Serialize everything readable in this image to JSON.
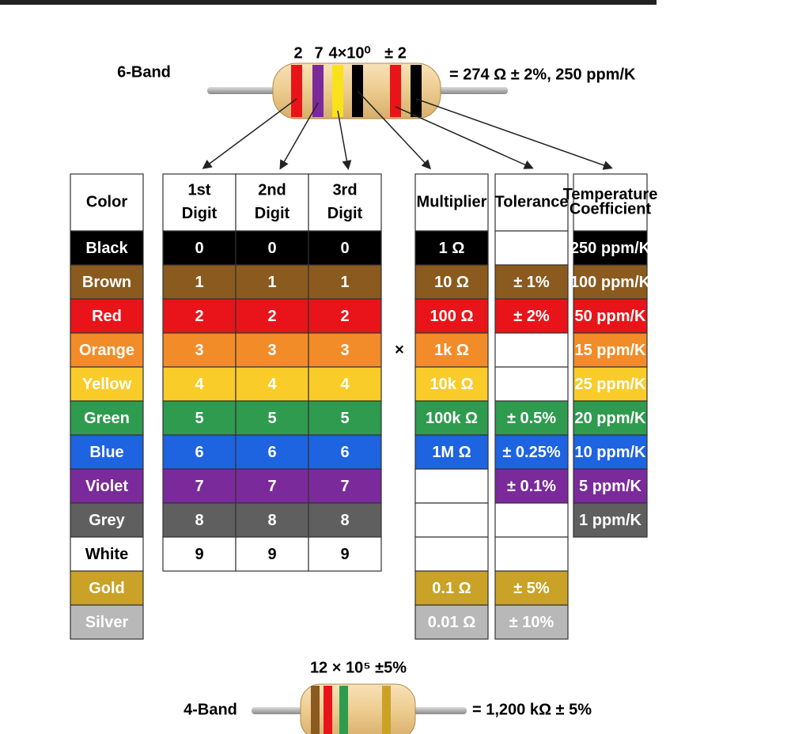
{
  "top_resistor": {
    "label": "6-Band",
    "codes": [
      "2",
      "7",
      "4×10⁰",
      "± 2"
    ],
    "result": "= 274 Ω ± 2%, 250 ppm/K"
  },
  "table": {
    "times": "×",
    "headers": {
      "color": [
        "Color"
      ],
      "digits": [
        [
          "1st",
          "Digit"
        ],
        [
          "2nd",
          "Digit"
        ],
        [
          "3rd",
          "Digit"
        ]
      ],
      "multiplier": [
        "Multiplier"
      ],
      "tolerance": [
        "Tolerance"
      ],
      "tempco": [
        "Temperature",
        "Coefficient"
      ]
    },
    "rows": [
      {
        "color": "Black",
        "bg": "#000000",
        "fg": "#ffffff",
        "digit": "0",
        "multiplier": "1 Ω",
        "tempco": "250 ppm/K"
      },
      {
        "color": "Brown",
        "bg": "#8b5a1e",
        "fg": "#ffffff",
        "digit": "1",
        "multiplier": "10 Ω",
        "tolerance": "± 1%",
        "tempco": "100 ppm/K"
      },
      {
        "color": "Red",
        "bg": "#e8141a",
        "fg": "#ffffff",
        "digit": "2",
        "multiplier": "100 Ω",
        "tolerance": "± 2%",
        "tempco": "50 ppm/K"
      },
      {
        "color": "Orange",
        "bg": "#f28c28",
        "fg": "#ffffff",
        "digit": "3",
        "multiplier": "1k Ω",
        "tempco": "15 ppm/K"
      },
      {
        "color": "Yellow",
        "bg": "#f9cc2a",
        "fg": "#ffffff",
        "digit": "4",
        "multiplier": "10k Ω",
        "tempco": "25 ppm/K"
      },
      {
        "color": "Green",
        "bg": "#2e9b4f",
        "fg": "#ffffff",
        "digit": "5",
        "multiplier": "100k Ω",
        "tolerance": "± 0.5%",
        "tempco": "20 ppm/K"
      },
      {
        "color": "Blue",
        "bg": "#1e63e0",
        "fg": "#ffffff",
        "digit": "6",
        "multiplier": "1M Ω",
        "tolerance": "± 0.25%",
        "tempco": "10 ppm/K"
      },
      {
        "color": "Violet",
        "bg": "#7a2a9a",
        "fg": "#ffffff",
        "digit": "7",
        "tolerance": "± 0.1%",
        "tempco": "5 ppm/K"
      },
      {
        "color": "Grey",
        "bg": "#5f5f5f",
        "fg": "#ffffff",
        "digit": "8",
        "tempco": "1 ppm/K"
      },
      {
        "color": "White",
        "bg": "#ffffff",
        "fg": "#000000",
        "digit": "9"
      },
      {
        "color": "Gold",
        "bg": "#c9a227",
        "fg": "#ffffff",
        "multiplier": "0.1 Ω",
        "tolerance": "± 5%"
      },
      {
        "color": "Silver",
        "bg": "#b8b8b8",
        "fg": "#ffffff",
        "multiplier": "0.01 Ω",
        "tolerance": "± 10%"
      }
    ]
  },
  "bottom_resistor": {
    "label": "4-Band",
    "code": "12 × 10⁵ ±5%",
    "result": "= 1,200 kΩ ± 5%"
  }
}
